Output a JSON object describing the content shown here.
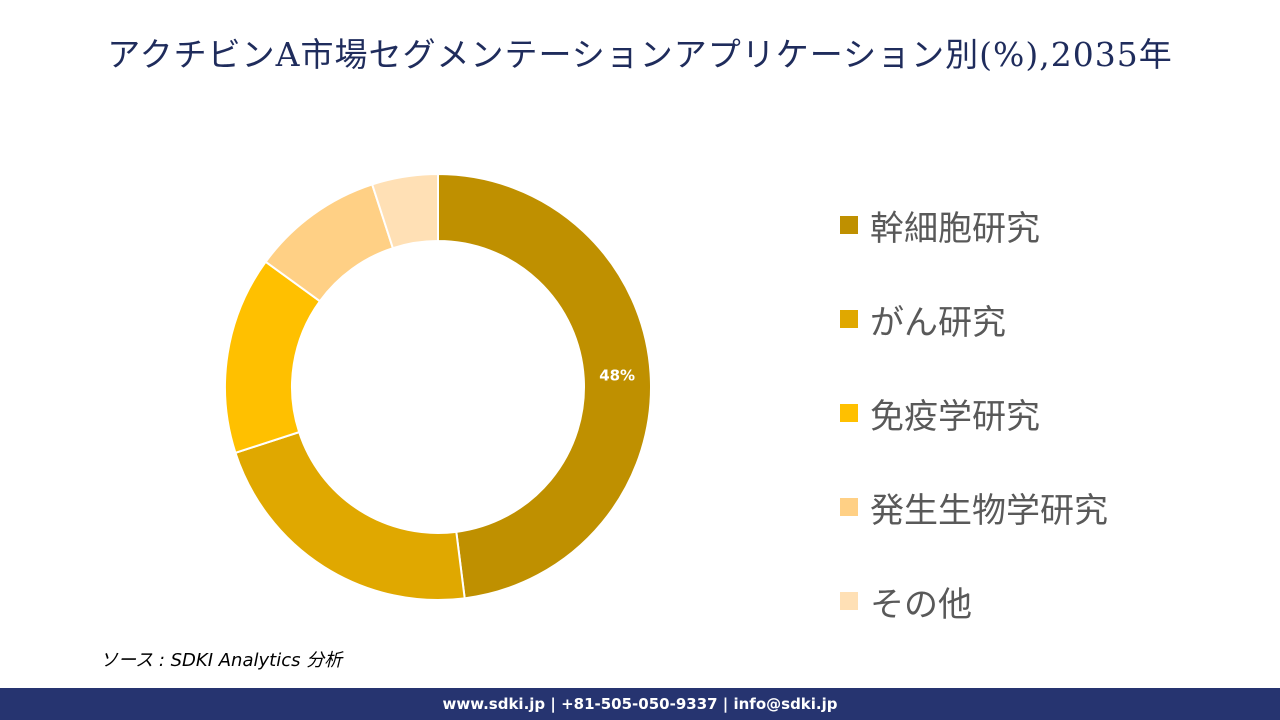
{
  "title": "アクチビンA市場セグメンテーションアプリケーション別(%),2035年",
  "chart_data": {
    "type": "pie",
    "donut": true,
    "title": "アクチビンA市場セグメンテーションアプリケーション別(%),2035年",
    "categories": [
      "幹細胞研究",
      "がん研究",
      "免疫学研究",
      "発生生物学研究",
      "その他"
    ],
    "values": [
      48,
      22,
      15,
      10,
      5
    ],
    "colors": [
      "#BF9000",
      "#E0A800",
      "#FFC000",
      "#FFD085",
      "#FFE0B5"
    ],
    "data_labels": [
      "48%",
      "",
      "",
      "",
      ""
    ],
    "legend_position": "right"
  },
  "source": "ソース : SDKI Analytics 分析",
  "footer": "www.sdki.jp | +81-505-050-9337 | info@sdki.jp"
}
